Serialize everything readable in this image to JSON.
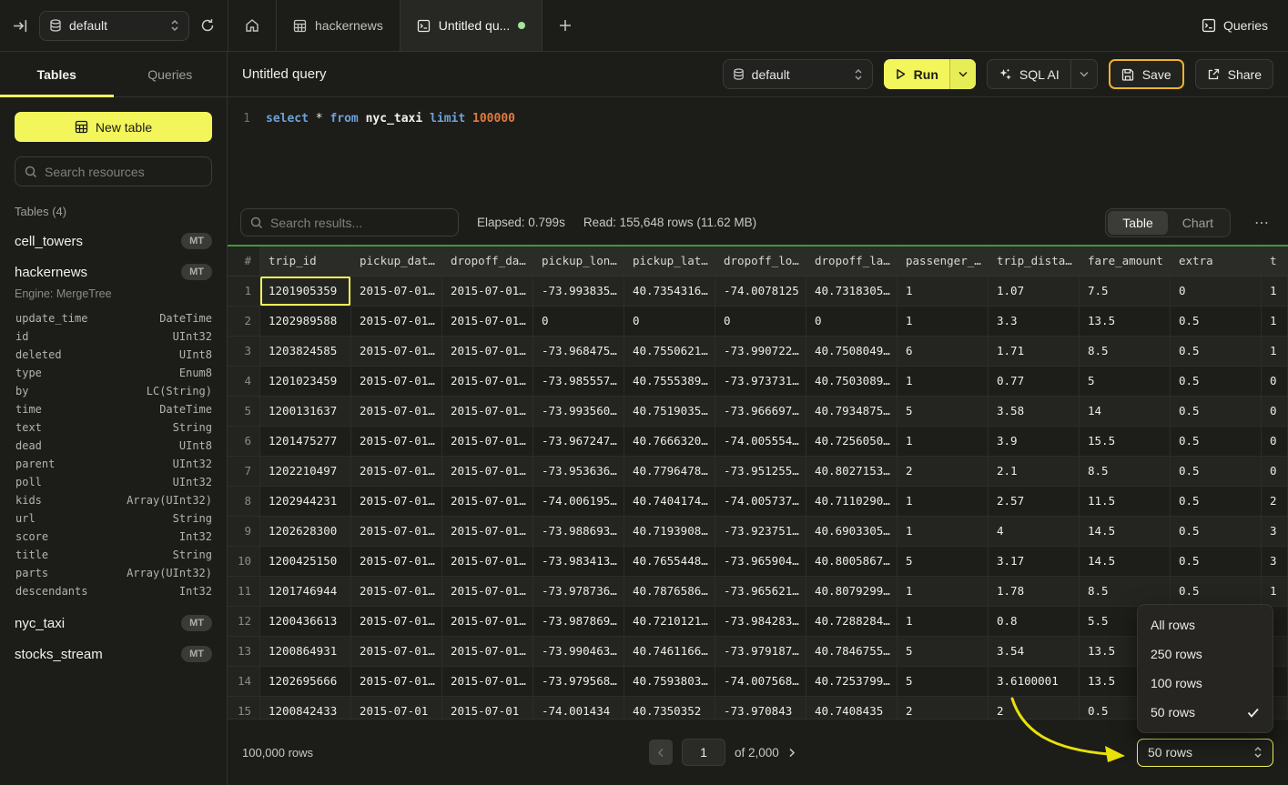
{
  "topbar": {
    "database_selector": "default",
    "tabs": [
      {
        "id": "home",
        "icon": "home-icon"
      },
      {
        "id": "hackernews",
        "icon": "table-icon",
        "label": "hackernews"
      },
      {
        "id": "untitled",
        "icon": "terminal-icon",
        "label": "Untitled qu...",
        "active": true,
        "unsaved": true
      }
    ],
    "queries_label": "Queries"
  },
  "sidebar": {
    "tabs": {
      "tables": "Tables",
      "queries": "Queries"
    },
    "new_table_label": "New table",
    "search_placeholder": "Search resources",
    "section_label": "Tables (4)",
    "tables": [
      {
        "name": "cell_towers",
        "badge": "MT"
      },
      {
        "name": "hackernews",
        "badge": "MT",
        "engine": "Engine: MergeTree",
        "columns": [
          {
            "name": "update_time",
            "type": "DateTime"
          },
          {
            "name": "id",
            "type": "UInt32"
          },
          {
            "name": "deleted",
            "type": "UInt8"
          },
          {
            "name": "type",
            "type": "Enum8"
          },
          {
            "name": "by",
            "type": "LC(String)"
          },
          {
            "name": "time",
            "type": "DateTime"
          },
          {
            "name": "text",
            "type": "String"
          },
          {
            "name": "dead",
            "type": "UInt8"
          },
          {
            "name": "parent",
            "type": "UInt32"
          },
          {
            "name": "poll",
            "type": "UInt32"
          },
          {
            "name": "kids",
            "type": "Array(UInt32)"
          },
          {
            "name": "url",
            "type": "String"
          },
          {
            "name": "score",
            "type": "Int32"
          },
          {
            "name": "title",
            "type": "String"
          },
          {
            "name": "parts",
            "type": "Array(UInt32)"
          },
          {
            "name": "descendants",
            "type": "Int32"
          }
        ]
      },
      {
        "name": "nyc_taxi",
        "badge": "MT"
      },
      {
        "name": "stocks_stream",
        "badge": "MT"
      }
    ]
  },
  "query": {
    "title": "Untitled query",
    "toolbar": {
      "database": "default",
      "run_label": "Run",
      "sql_ai_label": "SQL AI",
      "save_label": "Save",
      "share_label": "Share"
    },
    "editor": {
      "line_number": "1",
      "tokens": [
        {
          "text": "select",
          "type": "kw"
        },
        {
          "text": " ",
          "type": "plain"
        },
        {
          "text": "*",
          "type": "plain"
        },
        {
          "text": " ",
          "type": "plain"
        },
        {
          "text": "from",
          "type": "kw"
        },
        {
          "text": " ",
          "type": "plain"
        },
        {
          "text": "nyc_taxi",
          "type": "ident"
        },
        {
          "text": " ",
          "type": "plain"
        },
        {
          "text": "limit",
          "type": "kw"
        },
        {
          "text": " ",
          "type": "plain"
        },
        {
          "text": "100000",
          "type": "num"
        }
      ]
    }
  },
  "results": {
    "search_placeholder": "Search results...",
    "elapsed": "Elapsed: 0.799s",
    "read": "Read: 155,648 rows (11.62 MB)",
    "view_toggle": {
      "table": "Table",
      "chart": "Chart"
    },
    "more_label": "⋯",
    "table": {
      "columns": [
        "#",
        "trip_id",
        "pickup_dat…",
        "dropoff_da…",
        "pickup_lon…",
        "pickup_lat…",
        "dropoff_lo…",
        "dropoff_la…",
        "passenger_…",
        "trip_dista…",
        "fare_amount",
        "extra",
        "t"
      ],
      "selected_cell": {
        "row": 0,
        "col": 0
      },
      "rows": [
        [
          "1201905359",
          "2015-07-01…",
          "2015-07-01…",
          "-73.993835…",
          "40.7354316…",
          "-74.0078125",
          "40.7318305…",
          "1",
          "1.07",
          "7.5",
          "0",
          "1"
        ],
        [
          "1202989588",
          "2015-07-01…",
          "2015-07-01…",
          "0",
          "0",
          "0",
          "0",
          "1",
          "3.3",
          "13.5",
          "0.5",
          "1"
        ],
        [
          "1203824585",
          "2015-07-01…",
          "2015-07-01…",
          "-73.968475…",
          "40.7550621…",
          "-73.990722…",
          "40.7508049…",
          "6",
          "1.71",
          "8.5",
          "0.5",
          "1"
        ],
        [
          "1201023459",
          "2015-07-01…",
          "2015-07-01…",
          "-73.985557…",
          "40.7555389…",
          "-73.973731…",
          "40.7503089…",
          "1",
          "0.77",
          "5",
          "0.5",
          "0"
        ],
        [
          "1200131637",
          "2015-07-01…",
          "2015-07-01…",
          "-73.993560…",
          "40.7519035…",
          "-73.966697…",
          "40.7934875…",
          "5",
          "3.58",
          "14",
          "0.5",
          "0"
        ],
        [
          "1201475277",
          "2015-07-01…",
          "2015-07-01…",
          "-73.967247…",
          "40.7666320…",
          "-74.005554…",
          "40.7256050…",
          "1",
          "3.9",
          "15.5",
          "0.5",
          "0"
        ],
        [
          "1202210497",
          "2015-07-01…",
          "2015-07-01…",
          "-73.953636…",
          "40.7796478…",
          "-73.951255…",
          "40.8027153…",
          "2",
          "2.1",
          "8.5",
          "0.5",
          "0"
        ],
        [
          "1202944231",
          "2015-07-01…",
          "2015-07-01…",
          "-74.006195…",
          "40.7404174…",
          "-74.005737…",
          "40.7110290…",
          "1",
          "2.57",
          "11.5",
          "0.5",
          "2"
        ],
        [
          "1202628300",
          "2015-07-01…",
          "2015-07-01…",
          "-73.988693…",
          "40.7193908…",
          "-73.923751…",
          "40.6903305…",
          "1",
          "4",
          "14.5",
          "0.5",
          "3"
        ],
        [
          "1200425150",
          "2015-07-01…",
          "2015-07-01…",
          "-73.983413…",
          "40.7655448…",
          "-73.965904…",
          "40.8005867…",
          "5",
          "3.17",
          "14.5",
          "0.5",
          "3"
        ],
        [
          "1201746944",
          "2015-07-01…",
          "2015-07-01…",
          "-73.978736…",
          "40.7876586…",
          "-73.965621…",
          "40.8079299…",
          "1",
          "1.78",
          "8.5",
          "0.5",
          "1"
        ],
        [
          "1200436613",
          "2015-07-01…",
          "2015-07-01…",
          "-73.987869…",
          "40.7210121…",
          "-73.984283…",
          "40.7288284…",
          "1",
          "0.8",
          "5.5",
          "",
          ""
        ],
        [
          "1200864931",
          "2015-07-01…",
          "2015-07-01…",
          "-73.990463…",
          "40.7461166…",
          "-73.979187…",
          "40.7846755…",
          "5",
          "3.54",
          "13.5",
          "",
          ""
        ],
        [
          "1202695666",
          "2015-07-01…",
          "2015-07-01…",
          "-73.979568…",
          "40.7593803…",
          "-74.007568…",
          "40.7253799…",
          "5",
          "3.6100001",
          "13.5",
          "",
          ""
        ],
        [
          "1200842433",
          "2015-07-01",
          "2015-07-01",
          "-74.001434",
          "40.7350352",
          "-73.970843",
          "40.7408435",
          "2",
          "2",
          "0.5",
          "",
          ""
        ]
      ]
    },
    "footer": {
      "total": "100,000 rows",
      "page_value": "1",
      "page_of": "of 2,000",
      "page_size": "50 rows"
    },
    "page_size_menu": {
      "options": [
        "All rows",
        "250 rows",
        "100 rows",
        "50 rows"
      ],
      "selected": "50 rows"
    }
  },
  "colors": {
    "accent_yellow": "#f2f65a",
    "save_highlight": "#efb32e",
    "result_success_green": "#3f9b35",
    "unsaved_dot_green": "#a3e69d",
    "annotation_arrow": "#e8e00a",
    "background": "#1c1c19"
  }
}
